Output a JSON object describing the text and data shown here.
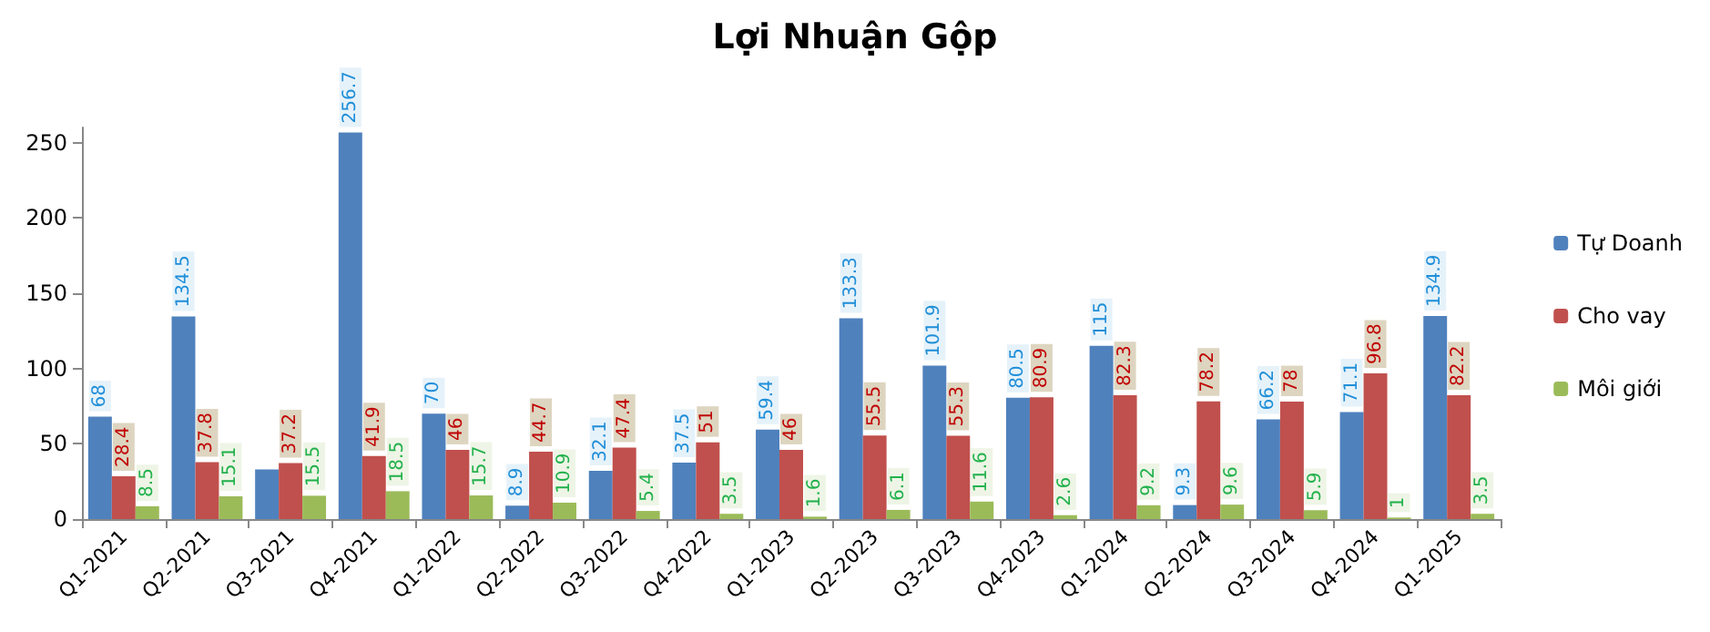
{
  "chart_data": {
    "type": "bar",
    "title": "Lợi Nhuận Gộp",
    "categories": [
      "Q1-2021",
      "Q2-2021",
      "Q3-2021",
      "Q4-2021",
      "Q1-2022",
      "Q2-2022",
      "Q3-2022",
      "Q4-2022",
      "Q1-2023",
      "Q2-2023",
      "Q3-2023",
      "Q4-2023",
      "Q1-2024",
      "Q2-2024",
      "Q3-2024",
      "Q4-2024",
      "Q1-2025"
    ],
    "series": [
      {
        "name": "Tự Doanh",
        "color": "#4f81bd",
        "values": [
          68,
          134.5,
          33,
          256.7,
          70,
          8.9,
          32.1,
          37.5,
          59.4,
          133.3,
          101.9,
          80.5,
          115,
          9.3,
          66.2,
          71.1,
          134.9
        ],
        "value_labels": [
          "68",
          "134.5",
          null,
          "256.7",
          "70",
          "8.9",
          "32.1",
          "37.5",
          "59.4",
          "133.3",
          "101.9",
          "80.5",
          "115",
          "9.3",
          "66.2",
          "71.1",
          "134.9"
        ]
      },
      {
        "name": "Cho vay",
        "color": "#c0504d",
        "values": [
          28.4,
          37.8,
          37.2,
          41.9,
          46,
          44.7,
          47.4,
          51,
          46,
          55.5,
          55.3,
          80.9,
          82.3,
          78.2,
          78,
          96.8,
          82.2
        ],
        "value_labels": [
          "28.4",
          "37.8",
          "37.2",
          "41.9",
          "46",
          "44.7",
          "47.4",
          "51",
          "46",
          "55.5",
          "55.3",
          "80.9",
          "82.3",
          "78.2",
          "78",
          "96.8",
          "82.2"
        ]
      },
      {
        "name": "Môi giới",
        "color": "#9bbb59",
        "values": [
          8.5,
          15.1,
          15.5,
          18.5,
          15.7,
          10.9,
          5.4,
          3.5,
          1.6,
          6.1,
          11.6,
          2.6,
          9.2,
          9.6,
          5.9,
          1,
          3.5
        ],
        "value_labels": [
          "8.5",
          "15.1",
          "15.5",
          "18.5",
          "15.7",
          "10.9",
          "5.4",
          "3.5",
          "1.6",
          "6.1",
          "11.6",
          "2.6",
          "9.2",
          "9.6",
          "5.9",
          "1",
          "3.5"
        ]
      }
    ],
    "ylim": [
      0,
      260
    ],
    "yticks": [
      0,
      50,
      100,
      150,
      200,
      250
    ],
    "grid": false,
    "legend": "right"
  }
}
